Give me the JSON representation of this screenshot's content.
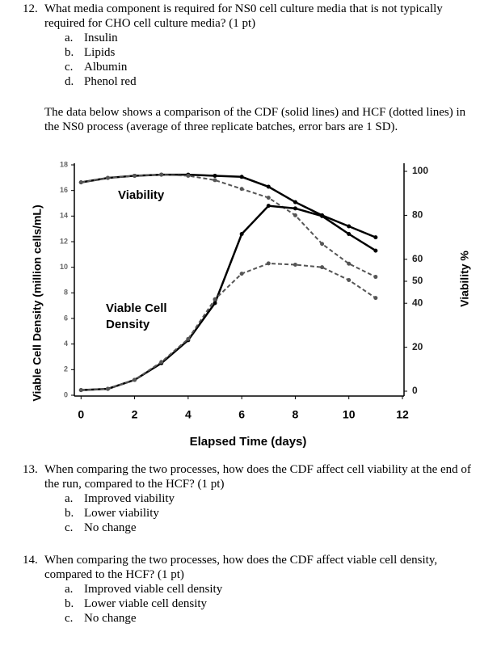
{
  "questions": [
    {
      "number": "12.",
      "text": "What media component is required for NS0 cell culture media that is not typically required for CHO cell culture media? (1 pt)",
      "options": [
        {
          "letter": "a.",
          "text": "Insulin"
        },
        {
          "letter": "b.",
          "text": "Lipids"
        },
        {
          "letter": "c.",
          "text": "Albumin"
        },
        {
          "letter": "d.",
          "text": "Phenol red"
        }
      ]
    },
    {
      "number": "13.",
      "text": "When comparing the two processes, how does the CDF affect cell viability at the end of the run, compared to the HCF? (1 pt)",
      "options": [
        {
          "letter": "a.",
          "text": "Improved viability"
        },
        {
          "letter": "b.",
          "text": "Lower viability"
        },
        {
          "letter": "c.",
          "text": "No change"
        }
      ]
    },
    {
      "number": "14.",
      "text": "When comparing the two processes, how does the CDF affect viable cell density, compared to the HCF? (1 pt)",
      "options": [
        {
          "letter": "a.",
          "text": "Improved viable cell density"
        },
        {
          "letter": "b.",
          "text": "Lower viable cell density"
        },
        {
          "letter": "c.",
          "text": "No change"
        }
      ]
    }
  ],
  "intro": "The data below shows a comparison of the CDF (solid lines) and HCF (dotted lines) in the NS0 process (average of three replicate batches, error bars are 1 SD).",
  "chart_data": {
    "type": "line",
    "x_label": "Elapsed Time (days)",
    "y_label": "Viable Cell Density (million cells/mL)",
    "y2_label": "Viability %",
    "annotations": [
      "Viability",
      "Viable Cell",
      "Density"
    ],
    "x": [
      0,
      1,
      2,
      3,
      4,
      5,
      6,
      7,
      8,
      9,
      10,
      11
    ],
    "xlim": [
      -0.25,
      12
    ],
    "xticks": [
      0,
      2,
      4,
      6,
      8,
      10,
      12
    ],
    "ylim": [
      0,
      18
    ],
    "yticks": [
      0,
      2,
      4,
      6,
      8,
      10,
      12,
      14,
      16,
      18
    ],
    "y2lim": [
      0,
      100
    ],
    "y2ticks": [
      0,
      20,
      40,
      50,
      60,
      80,
      100
    ],
    "series": [
      {
        "color": "#000000",
        "style": "solid",
        "axis": "y2",
        "values": [
          95,
          97,
          98,
          98.5,
          98.5,
          98,
          97.5,
          93,
          86,
          80,
          75,
          70
        ]
      },
      {
        "color": "#555555",
        "style": "dotted",
        "axis": "y2",
        "values": [
          95,
          97,
          98,
          98.5,
          98,
          96,
          92,
          88,
          80,
          67,
          58,
          52
        ]
      },
      {
        "color": "#000000",
        "style": "solid",
        "values": [
          0.4,
          0.5,
          1.2,
          2.5,
          4.3,
          7.2,
          12.6,
          14.8,
          14.6,
          14.0,
          12.6,
          11.3
        ]
      },
      {
        "color": "#555555",
        "style": "dotted",
        "values": [
          0.4,
          0.5,
          1.2,
          2.6,
          4.4,
          7.5,
          9.5,
          10.3,
          10.2,
          10.0,
          9.0,
          7.6
        ]
      }
    ]
  }
}
